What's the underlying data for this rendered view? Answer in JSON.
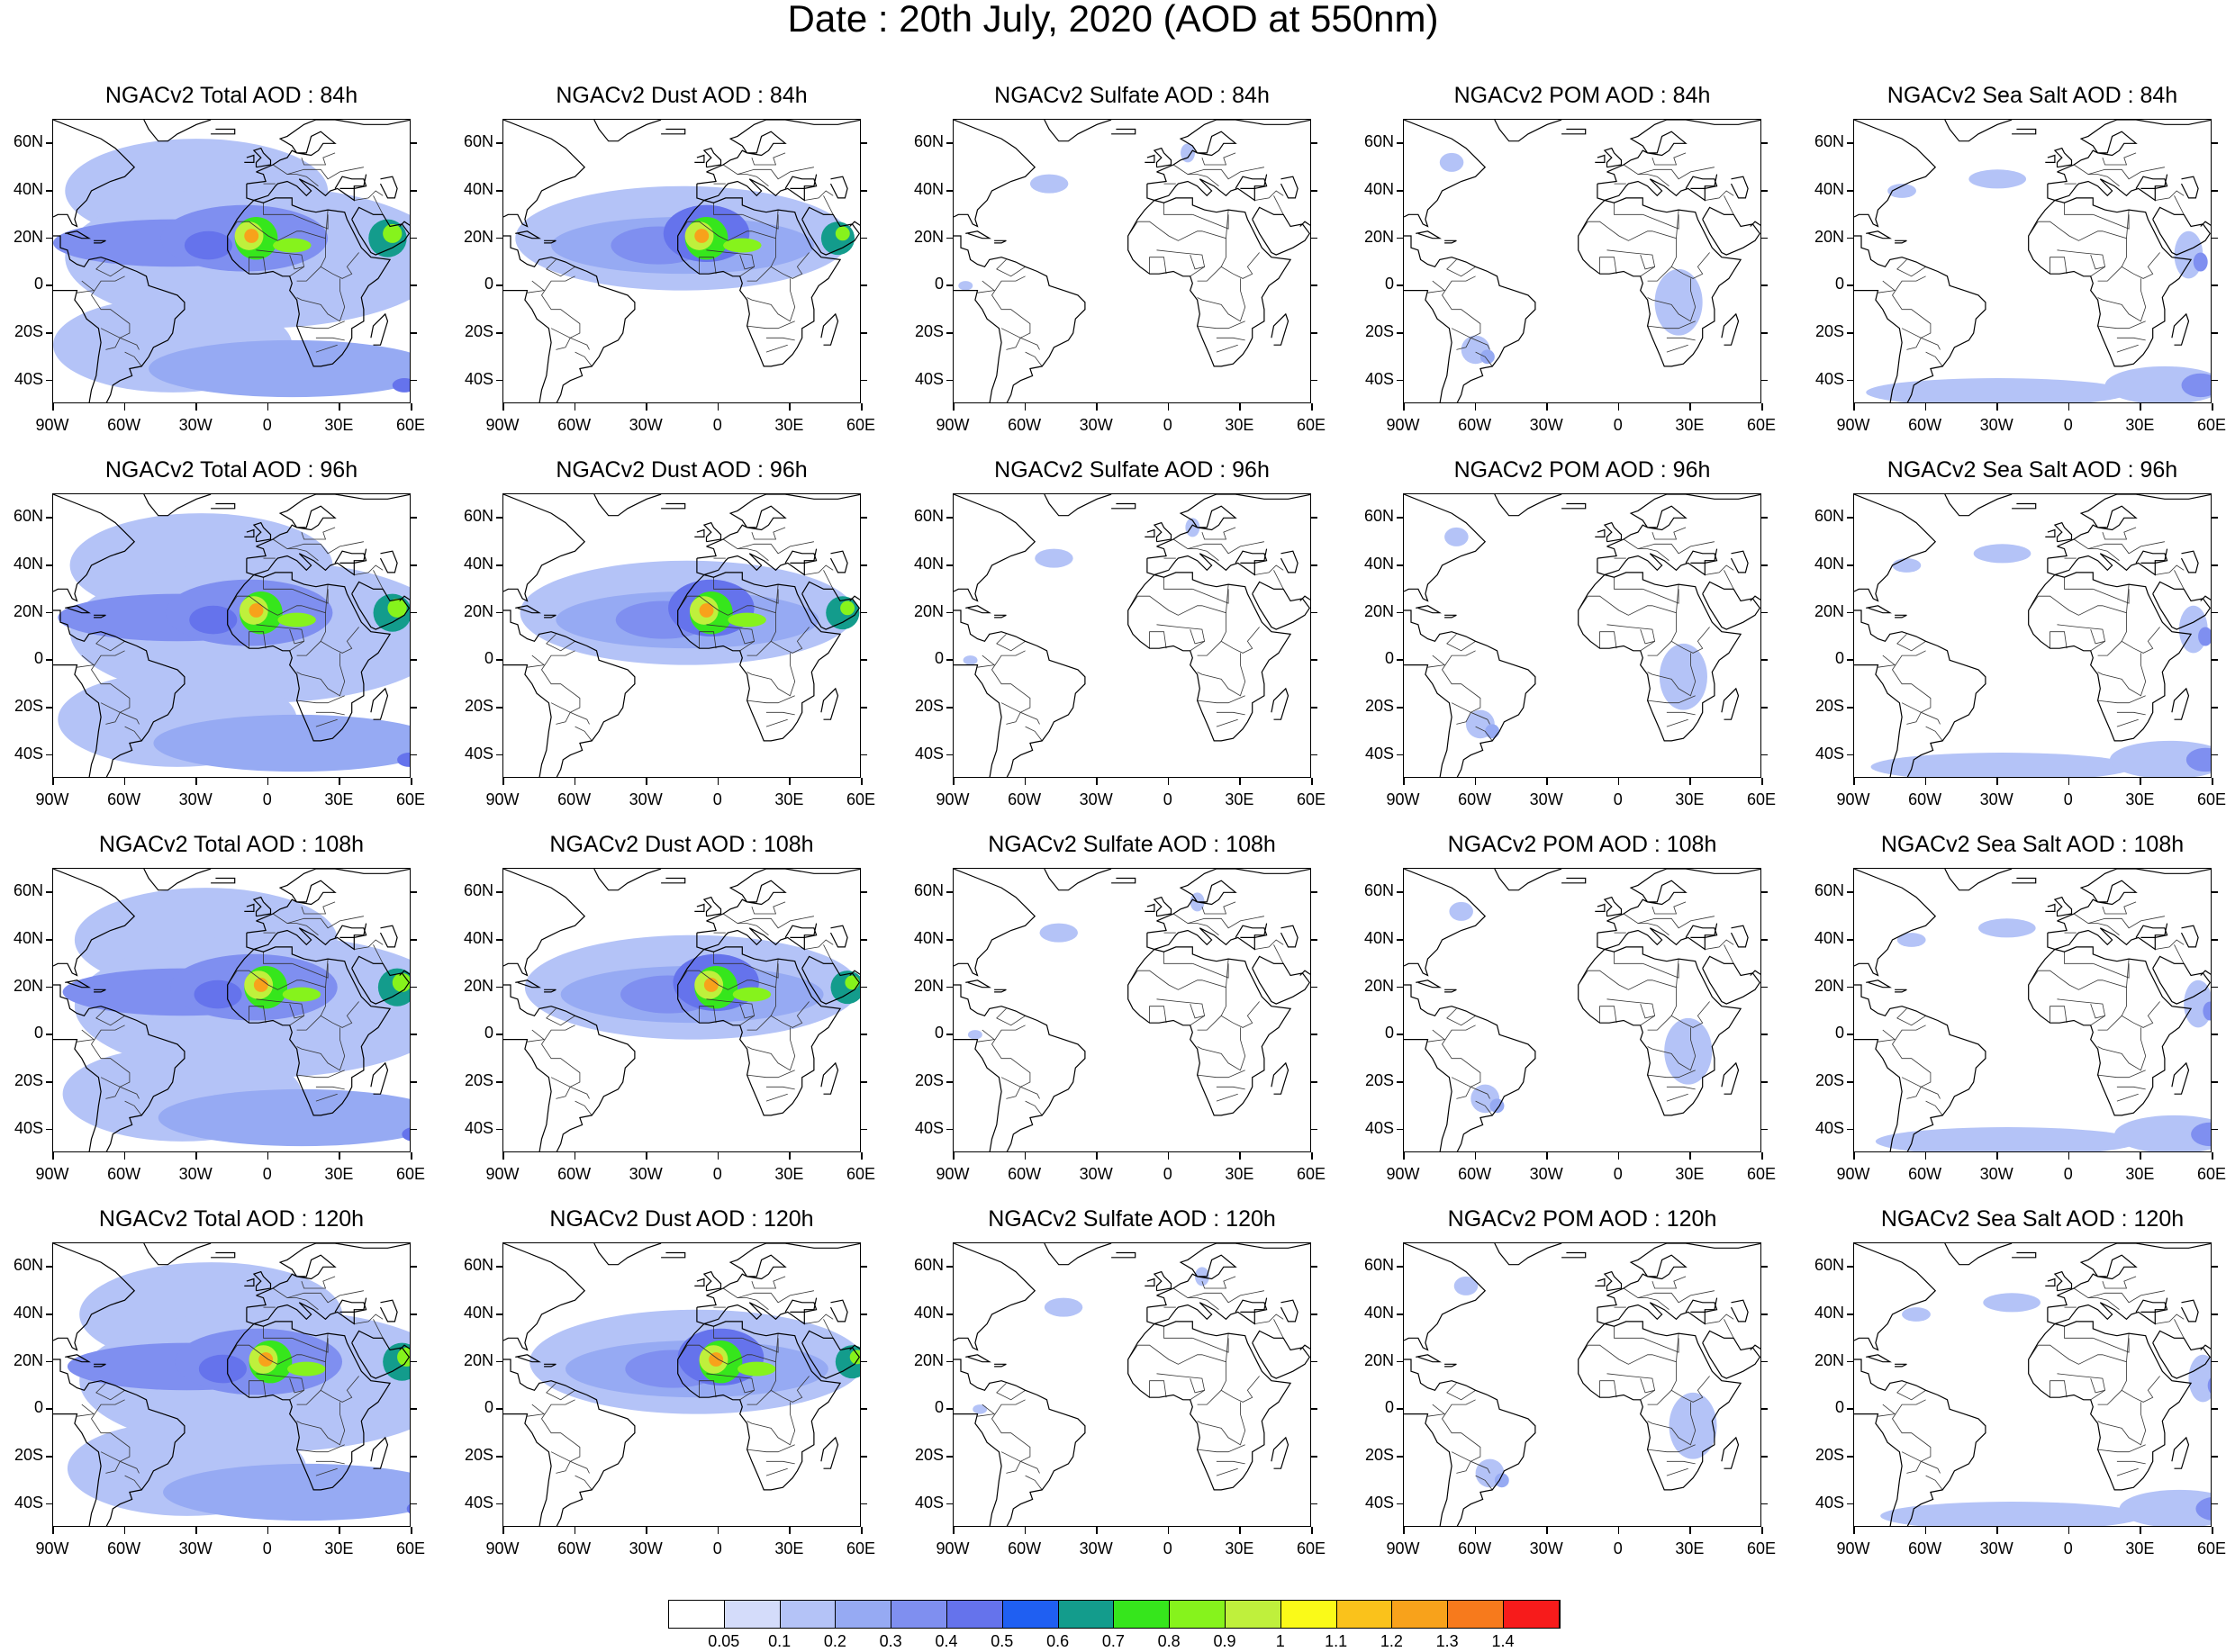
{
  "title": "Date : 20th July, 2020 (AOD at 550nm)",
  "columns": [
    {
      "key": "total",
      "label": "NGACv2 Total AOD"
    },
    {
      "key": "dust",
      "label": "NGACv2 Dust AOD"
    },
    {
      "key": "sulfate",
      "label": "NGACv2 Sulfate AOD"
    },
    {
      "key": "pom",
      "label": "NGACv2 POM AOD"
    },
    {
      "key": "seasalt",
      "label": "NGACv2 Sea Salt AOD"
    }
  ],
  "rows": [
    "84h",
    "96h",
    "108h",
    "120h"
  ],
  "panel_titles": [
    [
      "NGACv2 Total AOD : 84h",
      "NGACv2 Dust AOD : 84h",
      "NGACv2 Sulfate AOD : 84h",
      "NGACv2 POM AOD : 84h",
      "NGACv2 Sea Salt AOD : 84h"
    ],
    [
      "NGACv2 Total AOD : 96h",
      "NGACv2 Dust AOD : 96h",
      "NGACv2 Sulfate AOD : 96h",
      "NGACv2 POM AOD : 96h",
      "NGACv2 Sea Salt AOD : 96h"
    ],
    [
      "NGACv2 Total AOD : 108h",
      "NGACv2 Dust AOD : 108h",
      "NGACv2 Sulfate AOD : 108h",
      "NGACv2 POM AOD : 108h",
      "NGACv2 Sea Salt AOD : 108h"
    ],
    [
      "NGACv2 Total AOD : 120h",
      "NGACv2 Dust AOD : 120h",
      "NGACv2 Sulfate AOD : 120h",
      "NGACv2 POM AOD : 120h",
      "NGACv2 Sea Salt  AOD : 120h"
    ]
  ],
  "lat_ticks": [
    "60N",
    "40N",
    "20N",
    "0",
    "20S",
    "40S"
  ],
  "lat_values": [
    60,
    40,
    20,
    0,
    -20,
    -40
  ],
  "lon_ticks": [
    "90W",
    "60W",
    "30W",
    "0",
    "30E",
    "60E"
  ],
  "lon_values": [
    -90,
    -60,
    -30,
    0,
    30,
    60
  ],
  "map_extent": {
    "lon": [
      -90,
      60
    ],
    "lat": [
      -50,
      70
    ]
  },
  "colorbar": {
    "levels": [
      "0.05",
      "0.1",
      "0.2",
      "0.3",
      "0.4",
      "0.5",
      "0.6",
      "0.7",
      "0.8",
      "0.9",
      "1",
      "1.1",
      "1.2",
      "1.3",
      "1.4"
    ],
    "colors": [
      "#ffffff",
      "#d4dcfa",
      "#b4c3f7",
      "#96aaf3",
      "#7f8ff0",
      "#6573ec",
      "#1f5ff2",
      "#139c8c",
      "#36e61c",
      "#86f31c",
      "#bff03c",
      "#fafa18",
      "#fac21b",
      "#f8a21b",
      "#f77a1c",
      "#f71b1b"
    ]
  },
  "legend_colors": {
    "light": "#d4dcfa",
    "mid": "#b4c3f7",
    "med": "#96aaf3",
    "strong": "#7f8ff0",
    "dark": "#6573ec",
    "green": "#36e61c",
    "yellow": "#fafa18",
    "orange": "#f8a21b",
    "red": "#f71b1b"
  }
}
